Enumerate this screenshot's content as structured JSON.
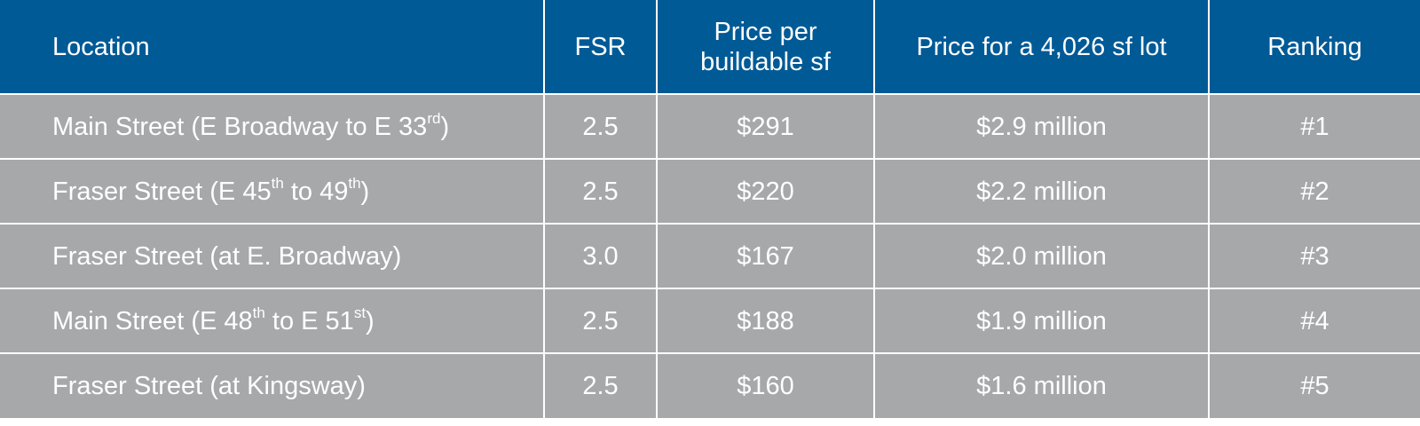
{
  "colors": {
    "header_background": "#005a96",
    "row_background": "#a7a8aa",
    "text": "#ffffff",
    "grid_lines": "#ffffff"
  },
  "table": {
    "headers": {
      "location": "Location",
      "fsr": "FSR",
      "price_per_sf_line1": "Price per",
      "price_per_sf_line2": "buildable sf",
      "lot_price": "Price for a 4,026 sf lot",
      "ranking": "Ranking"
    },
    "rows": [
      {
        "location": {
          "before": "Main Street (E Broadway to E 33",
          "sup": "rd",
          "after": ")"
        },
        "fsr": "2.5",
        "price_per_sf": "$291",
        "lot_price": "$2.9 million",
        "ranking": "#1"
      },
      {
        "location": {
          "before": "Fraser Street (E 45",
          "sup": "th",
          "middle": " to 49",
          "sup2": "th",
          "after": ")"
        },
        "fsr": "2.5",
        "price_per_sf": "$220",
        "lot_price": "$2.2 million",
        "ranking": "#2"
      },
      {
        "location": {
          "before": "Fraser Street (at E. Broadway)"
        },
        "fsr": "3.0",
        "price_per_sf": "$167",
        "lot_price": "$2.0 million",
        "ranking": "#3"
      },
      {
        "location": {
          "before": "Main Street (E 48",
          "sup": "th",
          "middle": " to E 51",
          "sup2": "st",
          "after": ")"
        },
        "fsr": "2.5",
        "price_per_sf": "$188",
        "lot_price": "$1.9 million",
        "ranking": "#4"
      },
      {
        "location": {
          "before": "Fraser Street (at Kingsway)"
        },
        "fsr": "2.5",
        "price_per_sf": "$160",
        "lot_price": "$1.6 million",
        "ranking": "#5"
      }
    ]
  }
}
